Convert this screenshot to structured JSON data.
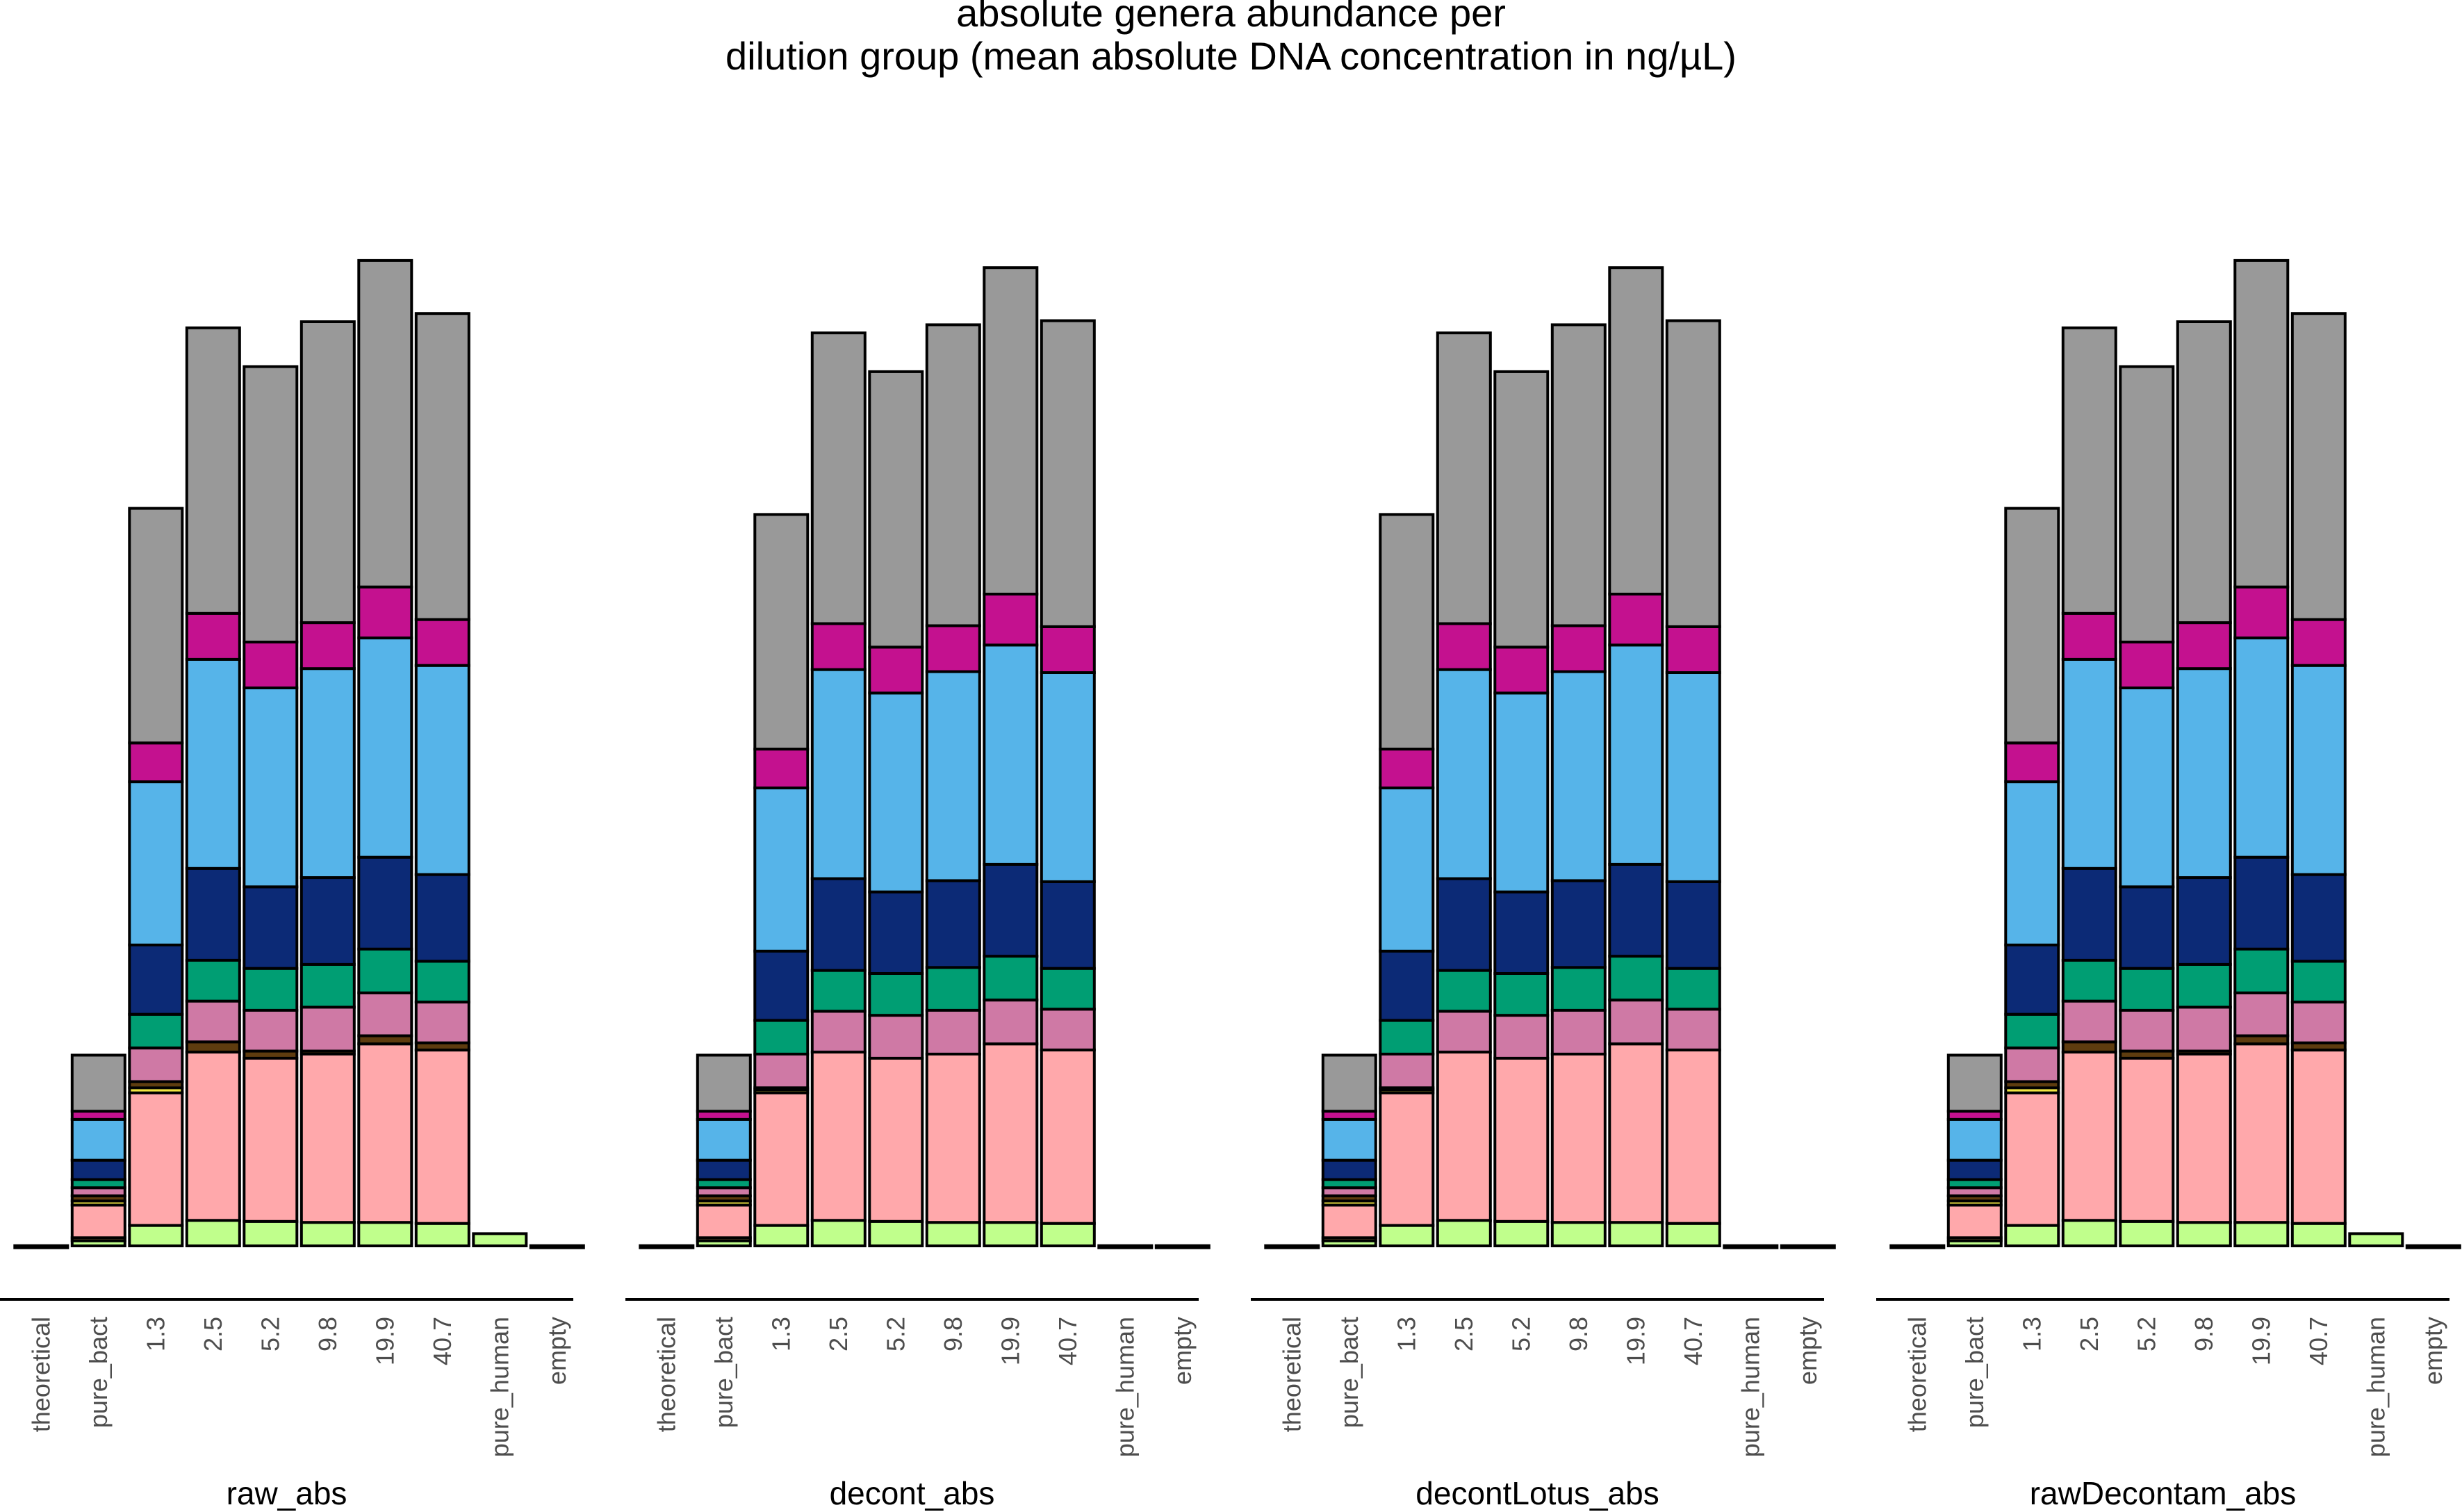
{
  "chart_data": {
    "type": "bar",
    "stacked": true,
    "title_lines": [
      "absolute genera abundance per",
      "dilution group (mean absolute DNA concentration in ng/µL)"
    ],
    "categories": [
      "theoretical",
      "pure_bact",
      "1.3",
      "2.5",
      "5.2",
      "9.8",
      "19.9",
      "40.7",
      "pure_human",
      "empty"
    ],
    "y_axis_shown": false,
    "legend_shown": false,
    "layer_colors": [
      "#c0ff8c",
      "#d2a56e",
      "#ffa8ab",
      "#f0e442",
      "#5e3c0f",
      "#cf79a5",
      "#009e73",
      "#0c2a76",
      "#56b4e9",
      "#c4118f",
      "#999999"
    ],
    "panels": [
      {
        "name": "raw_abs",
        "bars": [
          [
            0.02,
            0,
            0,
            0,
            0,
            0,
            0,
            0,
            0,
            0,
            0
          ],
          [
            0.5,
            0.3,
            3.2,
            0.4,
            0.5,
            0.8,
            0.8,
            1.9,
            4.0,
            0.8,
            5.5
          ],
          [
            2.0,
            0,
            13.0,
            0.5,
            0.6,
            3.3,
            3.3,
            6.8,
            16.0,
            3.8,
            23.0
          ],
          [
            2.5,
            0,
            16.5,
            0,
            1.0,
            4.0,
            4.0,
            9.0,
            20.5,
            4.5,
            28.0
          ],
          [
            2.4,
            0,
            16.0,
            0,
            0.7,
            4.0,
            4.1,
            8.0,
            19.5,
            4.5,
            27.0
          ],
          [
            2.3,
            0,
            16.5,
            0,
            0.3,
            4.3,
            4.2,
            8.5,
            20.5,
            4.5,
            29.5
          ],
          [
            2.3,
            0,
            17.5,
            0,
            0.8,
            4.2,
            4.3,
            9.0,
            21.5,
            5.0,
            32.0
          ],
          [
            2.2,
            0,
            17.0,
            0,
            0.7,
            4.0,
            4.0,
            8.5,
            20.5,
            4.5,
            30.0
          ],
          [
            1.2,
            0,
            0,
            0,
            0,
            0,
            0,
            0,
            0,
            0,
            0
          ],
          [
            0.02,
            0,
            0,
            0,
            0,
            0,
            0,
            0,
            0,
            0,
            0
          ]
        ]
      },
      {
        "name": "decont_abs",
        "bars": [
          [
            0.02,
            0,
            0,
            0,
            0,
            0,
            0,
            0,
            0,
            0,
            0
          ],
          [
            0.5,
            0.3,
            3.2,
            0.4,
            0.5,
            0.8,
            0.8,
            1.9,
            4.0,
            0.8,
            5.5
          ],
          [
            2.0,
            0,
            13.0,
            0.3,
            0.2,
            3.3,
            3.3,
            6.8,
            16.0,
            3.8,
            23.0
          ],
          [
            2.5,
            0,
            16.5,
            0,
            0,
            4.0,
            4.0,
            9.0,
            20.5,
            4.5,
            28.5
          ],
          [
            2.4,
            0,
            16.0,
            0,
            0,
            4.2,
            4.1,
            8.0,
            19.5,
            4.5,
            27.0
          ],
          [
            2.3,
            0,
            16.5,
            0,
            0,
            4.3,
            4.2,
            8.5,
            20.5,
            4.5,
            29.5
          ],
          [
            2.3,
            0,
            17.5,
            0,
            0,
            4.3,
            4.3,
            9.0,
            21.5,
            5.0,
            32.0
          ],
          [
            2.2,
            0,
            17.0,
            0,
            0,
            4.0,
            4.0,
            8.5,
            20.5,
            4.5,
            30.0
          ],
          [
            0.02,
            0,
            0,
            0,
            0,
            0,
            0,
            0,
            0,
            0,
            0
          ],
          [
            0.02,
            0,
            0,
            0,
            0,
            0,
            0,
            0,
            0,
            0,
            0
          ]
        ]
      },
      {
        "name": "decontLotus_abs",
        "bars": [
          [
            0.02,
            0,
            0,
            0,
            0,
            0,
            0,
            0,
            0,
            0,
            0
          ],
          [
            0.5,
            0.3,
            3.2,
            0.4,
            0.5,
            0.8,
            0.8,
            1.9,
            4.0,
            0.8,
            5.5
          ],
          [
            2.0,
            0,
            13.0,
            0.3,
            0.2,
            3.3,
            3.3,
            6.8,
            16.0,
            3.8,
            23.0
          ],
          [
            2.5,
            0,
            16.5,
            0,
            0,
            4.0,
            4.0,
            9.0,
            20.5,
            4.5,
            28.5
          ],
          [
            2.4,
            0,
            16.0,
            0,
            0,
            4.2,
            4.1,
            8.0,
            19.5,
            4.5,
            27.0
          ],
          [
            2.3,
            0,
            16.5,
            0,
            0,
            4.3,
            4.2,
            8.5,
            20.5,
            4.5,
            29.5
          ],
          [
            2.3,
            0,
            17.5,
            0,
            0,
            4.3,
            4.3,
            9.0,
            21.5,
            5.0,
            32.0
          ],
          [
            2.2,
            0,
            17.0,
            0,
            0,
            4.0,
            4.0,
            8.5,
            20.5,
            4.5,
            30.0
          ],
          [
            0.02,
            0,
            0,
            0,
            0,
            0,
            0,
            0,
            0,
            0,
            0
          ],
          [
            0.02,
            0,
            0,
            0,
            0,
            0,
            0,
            0,
            0,
            0,
            0
          ]
        ]
      },
      {
        "name": "rawDecontam_abs",
        "bars": [
          [
            0.02,
            0,
            0,
            0,
            0,
            0,
            0,
            0,
            0,
            0,
            0
          ],
          [
            0.5,
            0.3,
            3.2,
            0.4,
            0.5,
            0.8,
            0.8,
            1.9,
            4.0,
            0.8,
            5.5
          ],
          [
            2.0,
            0,
            13.0,
            0.5,
            0.6,
            3.3,
            3.3,
            6.8,
            16.0,
            3.8,
            23.0
          ],
          [
            2.5,
            0,
            16.5,
            0,
            1.0,
            4.0,
            4.0,
            9.0,
            20.5,
            4.5,
            28.0
          ],
          [
            2.4,
            0,
            16.0,
            0,
            0.7,
            4.0,
            4.1,
            8.0,
            19.5,
            4.5,
            27.0
          ],
          [
            2.3,
            0,
            16.5,
            0,
            0.3,
            4.3,
            4.2,
            8.5,
            20.5,
            4.5,
            29.5
          ],
          [
            2.3,
            0,
            17.5,
            0,
            0.8,
            4.2,
            4.3,
            9.0,
            21.5,
            5.0,
            32.0
          ],
          [
            2.2,
            0,
            17.0,
            0,
            0.7,
            4.0,
            4.0,
            8.5,
            20.5,
            4.5,
            30.0
          ],
          [
            1.2,
            0,
            0,
            0,
            0,
            0,
            0,
            0,
            0,
            0,
            0
          ],
          [
            0.02,
            0,
            0,
            0,
            0,
            0,
            0,
            0,
            0,
            0,
            0
          ]
        ]
      }
    ]
  }
}
